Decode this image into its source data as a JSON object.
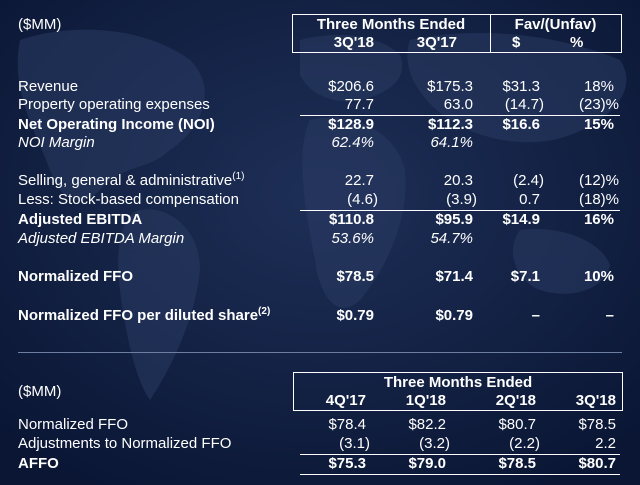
{
  "top": {
    "unit": "($MM)",
    "header_group1": "Three Months Ended",
    "header_group2": "Fav/(Unfav)",
    "col1": "3Q'18",
    "col2": "3Q'17",
    "col3": "$",
    "col4": "%",
    "rows": [
      {
        "label": "Revenue",
        "v1": "$206.6",
        "v2": "$175.3",
        "v3": "$31.3",
        "v4": "18%"
      },
      {
        "label": "Property operating expenses",
        "v1": "77.7",
        "v2": "63.0",
        "v3": "(14.7)",
        "v4": "(23)%"
      },
      {
        "label": "Net Operating Income (NOI)",
        "v1": "$128.9",
        "v2": "$112.3",
        "v3": "$16.6",
        "v4": "15%"
      },
      {
        "label": "NOI Margin",
        "v1": "62.4%",
        "v2": "64.1%",
        "v3": "",
        "v4": ""
      },
      {
        "label": "Selling, general & administrative",
        "sup": "(1)",
        "v1": "22.7",
        "v2": "20.3",
        "v3": "(2.4)",
        "v4": "(12)%"
      },
      {
        "label": "Less: Stock-based compensation",
        "v1": "(4.6)",
        "v2": "(3.9)",
        "v3": "0.7",
        "v4": "(18)%"
      },
      {
        "label": "Adjusted EBITDA",
        "v1": "$110.8",
        "v2": "$95.9",
        "v3": "$14.9",
        "v4": "16%"
      },
      {
        "label": "Adjusted EBITDA Margin",
        "v1": "53.6%",
        "v2": "54.7%",
        "v3": "",
        "v4": ""
      },
      {
        "label": "Normalized FFO",
        "v1": "$78.5",
        "v2": "$71.4",
        "v3": "$7.1",
        "v4": "10%"
      },
      {
        "label": "Normalized FFO per diluted share",
        "sup": "(2)",
        "v1": "$0.79",
        "v2": "$0.79",
        "v3": "–",
        "v4": "–"
      }
    ]
  },
  "bottom": {
    "unit": "($MM)",
    "header_group": "Three Months Ended",
    "cols": [
      "4Q'17",
      "1Q'18",
      "2Q'18",
      "3Q'18"
    ],
    "rows": [
      {
        "label": "Normalized FFO",
        "vals": [
          "$78.4",
          "$82.2",
          "$80.7",
          "$78.5"
        ]
      },
      {
        "label": "Adjustments to Normalized FFO",
        "vals": [
          "(3.1)",
          "(3.2)",
          "(2.2)",
          "2.2"
        ]
      },
      {
        "label": "AFFO",
        "vals": [
          "$75.3",
          "$79.0",
          "$78.5",
          "$80.7"
        ]
      }
    ]
  }
}
